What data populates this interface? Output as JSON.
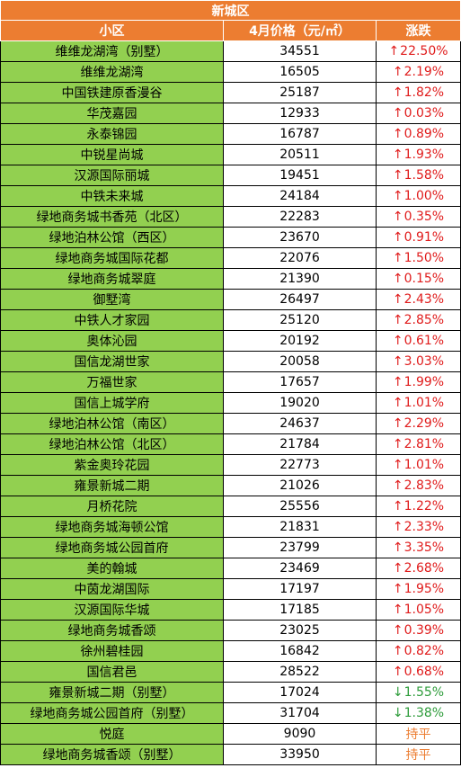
{
  "title": "新城区",
  "headers": {
    "name": "小区",
    "price": "4月价格（元/㎡）",
    "change": "涨跌"
  },
  "colors": {
    "header_bg": "#ec7d31",
    "name_bg": "#92d050",
    "up": "#e01b1b",
    "down": "#2e9c3b",
    "flat": "#ec7d31"
  },
  "rows": [
    {
      "name": "维维龙湖湾（别墅）",
      "price": "34551",
      "dir": "up",
      "change": "22.50%"
    },
    {
      "name": "维维龙湖湾",
      "price": "16505",
      "dir": "up",
      "change": "2.19%"
    },
    {
      "name": "中国铁建原香漫谷",
      "price": "25187",
      "dir": "up",
      "change": "1.82%"
    },
    {
      "name": "华茂嘉园",
      "price": "12933",
      "dir": "up",
      "change": "0.03%"
    },
    {
      "name": "永泰锦园",
      "price": "16787",
      "dir": "up",
      "change": "0.89%"
    },
    {
      "name": "中锐星尚城",
      "price": "20511",
      "dir": "up",
      "change": "1.93%"
    },
    {
      "name": "汉源国际丽城",
      "price": "19451",
      "dir": "up",
      "change": "1.58%"
    },
    {
      "name": "中铁未来城",
      "price": "24184",
      "dir": "up",
      "change": "1.00%"
    },
    {
      "name": "绿地商务城书香苑（北区）",
      "price": "22283",
      "dir": "up",
      "change": "0.35%"
    },
    {
      "name": "绿地泊林公馆（西区）",
      "price": "23670",
      "dir": "up",
      "change": "0.91%"
    },
    {
      "name": "绿地商务城国际花都",
      "price": "22076",
      "dir": "up",
      "change": "1.50%"
    },
    {
      "name": "绿地商务城翠庭",
      "price": "21390",
      "dir": "up",
      "change": "0.15%"
    },
    {
      "name": "御墅湾",
      "price": "26497",
      "dir": "up",
      "change": "2.43%"
    },
    {
      "name": "中铁人才家园",
      "price": "25120",
      "dir": "up",
      "change": "2.85%"
    },
    {
      "name": "奥体沁园",
      "price": "20192",
      "dir": "up",
      "change": "0.61%"
    },
    {
      "name": "国信龙湖世家",
      "price": "20058",
      "dir": "up",
      "change": "3.03%"
    },
    {
      "name": "万福世家",
      "price": "17657",
      "dir": "up",
      "change": "1.99%"
    },
    {
      "name": "国信上城学府",
      "price": "19020",
      "dir": "up",
      "change": "1.01%"
    },
    {
      "name": "绿地泊林公馆（南区）",
      "price": "24637",
      "dir": "up",
      "change": "2.29%"
    },
    {
      "name": "绿地泊林公馆（北区）",
      "price": "21784",
      "dir": "up",
      "change": "2.81%"
    },
    {
      "name": "紫金奥玲花园",
      "price": "22773",
      "dir": "up",
      "change": "1.01%"
    },
    {
      "name": "雍景新城二期",
      "price": "21026",
      "dir": "up",
      "change": "2.83%"
    },
    {
      "name": "月桥花院",
      "price": "25556",
      "dir": "up",
      "change": "1.22%"
    },
    {
      "name": "绿地商务城海顿公馆",
      "price": "21831",
      "dir": "up",
      "change": "2.33%"
    },
    {
      "name": "绿地商务城公园首府",
      "price": "23799",
      "dir": "up",
      "change": "3.35%"
    },
    {
      "name": "美的翰城",
      "price": "23469",
      "dir": "up",
      "change": "2.68%"
    },
    {
      "name": "中茵龙湖国际",
      "price": "17197",
      "dir": "up",
      "change": "1.95%"
    },
    {
      "name": "汉源国际华城",
      "price": "17185",
      "dir": "up",
      "change": "1.05%"
    },
    {
      "name": "绿地商务城香颂",
      "price": "23025",
      "dir": "up",
      "change": "0.39%"
    },
    {
      "name": "徐州碧桂园",
      "price": "16842",
      "dir": "up",
      "change": "0.82%"
    },
    {
      "name": "国信君邑",
      "price": "28522",
      "dir": "up",
      "change": "0.68%"
    },
    {
      "name": "雍景新城二期（别墅）",
      "price": "17024",
      "dir": "down",
      "change": "1.55%"
    },
    {
      "name": "绿地商务城公园首府（别墅）",
      "price": "31704",
      "dir": "down",
      "change": "1.38%"
    },
    {
      "name": "悦庭",
      "price": "9090",
      "dir": "flat",
      "change": "持平"
    },
    {
      "name": "绿地商务城香颂（别墅）",
      "price": "33950",
      "dir": "flat",
      "change": "持平"
    }
  ]
}
